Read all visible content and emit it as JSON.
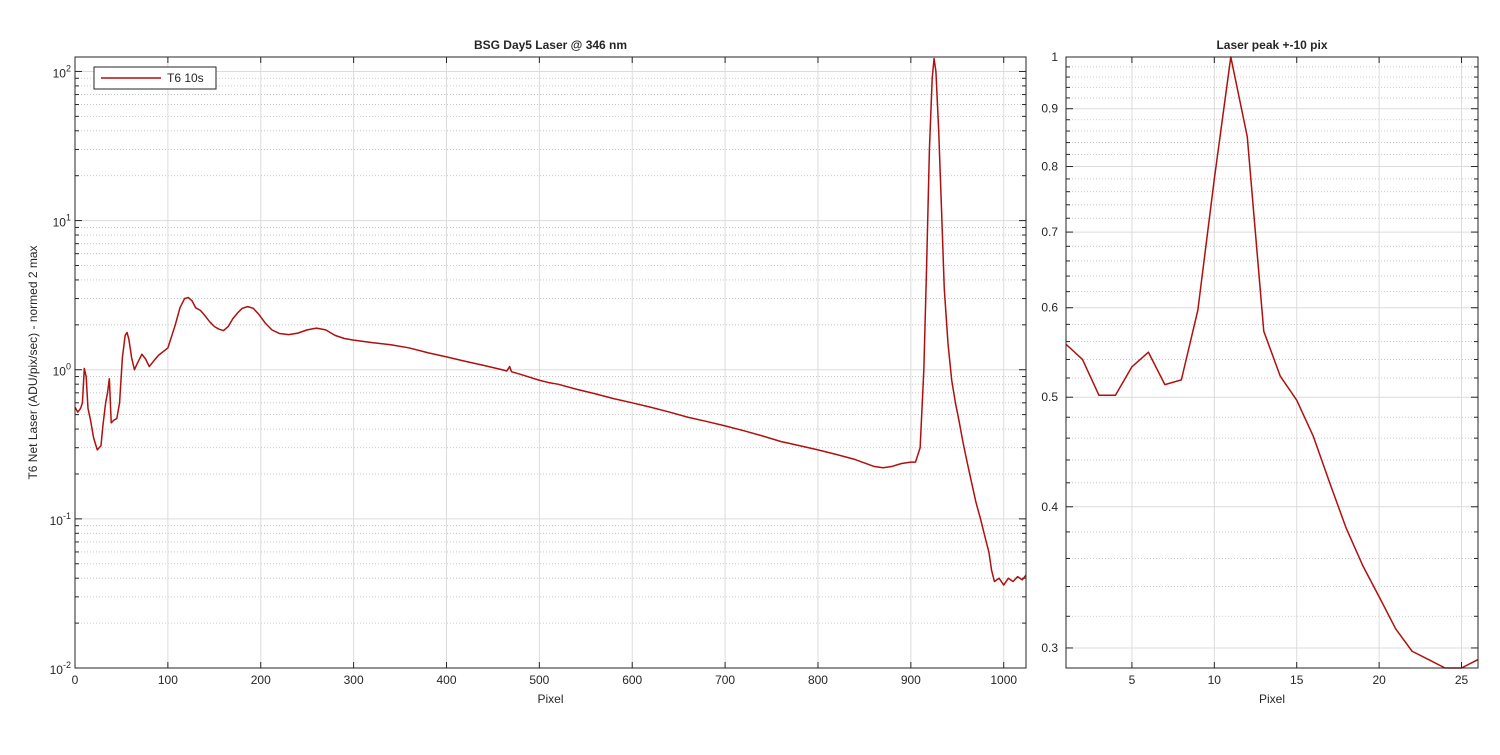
{
  "chart_data": [
    {
      "type": "line",
      "title": "BSG  Day5 Laser @ 346 nm",
      "xlabel": "Pixel",
      "ylabel": "T6 Net Laser (ADU/pix/sec) - normed 2 max",
      "xlim": [
        0,
        1024
      ],
      "ylim": [
        0.01,
        125
      ],
      "yscale": "log",
      "grid": "on",
      "minor_grid": "on",
      "legend_position": "top-left",
      "xticks": [
        "0",
        "100",
        "200",
        "300",
        "400",
        "500",
        "600",
        "700",
        "800",
        "900",
        "1000"
      ],
      "xtick_values": [
        0,
        100,
        200,
        300,
        400,
        500,
        600,
        700,
        800,
        900,
        1000
      ],
      "yticks": [
        {
          "value": 0.01,
          "base": "10",
          "exp": "-2"
        },
        {
          "value": 0.1,
          "base": "10",
          "exp": "-1"
        },
        {
          "value": 1,
          "base": "10",
          "exp": "0"
        },
        {
          "value": 10,
          "base": "10",
          "exp": "1"
        },
        {
          "value": 100,
          "base": "10",
          "exp": "2"
        }
      ],
      "series": [
        {
          "name": "T6 10s",
          "color": "#b00f0f",
          "points": [
            [
              0,
              0.56
            ],
            [
              3,
              0.52
            ],
            [
              6,
              0.55
            ],
            [
              8,
              0.6
            ],
            [
              10,
              1.02
            ],
            [
              12,
              0.9
            ],
            [
              14,
              0.55
            ],
            [
              17,
              0.45
            ],
            [
              20,
              0.35
            ],
            [
              24,
              0.29
            ],
            [
              28,
              0.31
            ],
            [
              30,
              0.42
            ],
            [
              33,
              0.6
            ],
            [
              35,
              0.7
            ],
            [
              37,
              0.87
            ],
            [
              39,
              0.44
            ],
            [
              42,
              0.46
            ],
            [
              45,
              0.47
            ],
            [
              48,
              0.6
            ],
            [
              51,
              1.2
            ],
            [
              54,
              1.7
            ],
            [
              56,
              1.78
            ],
            [
              58,
              1.6
            ],
            [
              61,
              1.2
            ],
            [
              64,
              1.0
            ],
            [
              67,
              1.1
            ],
            [
              72,
              1.27
            ],
            [
              76,
              1.18
            ],
            [
              80,
              1.05
            ],
            [
              85,
              1.15
            ],
            [
              90,
              1.25
            ],
            [
              100,
              1.4
            ],
            [
              108,
              2.0
            ],
            [
              113,
              2.6
            ],
            [
              118,
              3.0
            ],
            [
              122,
              3.05
            ],
            [
              126,
              2.9
            ],
            [
              130,
              2.6
            ],
            [
              135,
              2.5
            ],
            [
              140,
              2.3
            ],
            [
              145,
              2.1
            ],
            [
              150,
              1.95
            ],
            [
              155,
              1.87
            ],
            [
              160,
              1.83
            ],
            [
              165,
              1.95
            ],
            [
              170,
              2.2
            ],
            [
              175,
              2.4
            ],
            [
              180,
              2.58
            ],
            [
              186,
              2.65
            ],
            [
              192,
              2.58
            ],
            [
              198,
              2.35
            ],
            [
              205,
              2.05
            ],
            [
              212,
              1.85
            ],
            [
              220,
              1.75
            ],
            [
              230,
              1.72
            ],
            [
              240,
              1.76
            ],
            [
              250,
              1.85
            ],
            [
              260,
              1.9
            ],
            [
              270,
              1.85
            ],
            [
              280,
              1.7
            ],
            [
              290,
              1.62
            ],
            [
              300,
              1.58
            ],
            [
              320,
              1.52
            ],
            [
              340,
              1.47
            ],
            [
              360,
              1.4
            ],
            [
              380,
              1.3
            ],
            [
              400,
              1.22
            ],
            [
              420,
              1.14
            ],
            [
              440,
              1.07
            ],
            [
              460,
              1.0
            ],
            [
              465,
              0.98
            ],
            [
              468,
              1.05
            ],
            [
              470,
              0.97
            ],
            [
              480,
              0.93
            ],
            [
              500,
              0.85
            ],
            [
              510,
              0.82
            ],
            [
              520,
              0.8
            ],
            [
              540,
              0.74
            ],
            [
              560,
              0.69
            ],
            [
              580,
              0.64
            ],
            [
              600,
              0.6
            ],
            [
              620,
              0.56
            ],
            [
              640,
              0.52
            ],
            [
              660,
              0.48
            ],
            [
              680,
              0.45
            ],
            [
              700,
              0.42
            ],
            [
              720,
              0.39
            ],
            [
              740,
              0.36
            ],
            [
              760,
              0.33
            ],
            [
              780,
              0.31
            ],
            [
              800,
              0.29
            ],
            [
              820,
              0.27
            ],
            [
              840,
              0.25
            ],
            [
              860,
              0.225
            ],
            [
              870,
              0.22
            ],
            [
              880,
              0.225
            ],
            [
              890,
              0.235
            ],
            [
              900,
              0.24
            ],
            [
              905,
              0.24
            ],
            [
              910,
              0.3
            ],
            [
              914,
              1.0
            ],
            [
              917,
              5.0
            ],
            [
              920,
              30
            ],
            [
              923,
              90
            ],
            [
              925,
              122
            ],
            [
              927,
              100
            ],
            [
              930,
              40
            ],
            [
              933,
              12
            ],
            [
              936,
              3.5
            ],
            [
              940,
              1.5
            ],
            [
              944,
              0.85
            ],
            [
              948,
              0.6
            ],
            [
              952,
              0.45
            ],
            [
              956,
              0.33
            ],
            [
              960,
              0.25
            ],
            [
              965,
              0.18
            ],
            [
              970,
              0.13
            ],
            [
              975,
              0.1
            ],
            [
              980,
              0.075
            ],
            [
              984,
              0.06
            ],
            [
              987,
              0.045
            ],
            [
              990,
              0.038
            ],
            [
              995,
              0.04
            ],
            [
              1000,
              0.036
            ],
            [
              1005,
              0.04
            ],
            [
              1010,
              0.038
            ],
            [
              1015,
              0.041
            ],
            [
              1020,
              0.039
            ],
            [
              1024,
              0.042
            ]
          ]
        }
      ]
    },
    {
      "type": "line",
      "title": "Laser peak +-10 pix",
      "xlabel": "Pixel",
      "ylabel": "",
      "xlim": [
        1,
        26
      ],
      "ylim": [
        0.288,
        1.0
      ],
      "yscale": "log",
      "grid": "on",
      "minor_grid": "on",
      "xticks": [
        "5",
        "10",
        "15",
        "20",
        "25"
      ],
      "xtick_values": [
        5,
        10,
        15,
        20,
        25
      ],
      "yticks": [
        "0.3",
        "0.4",
        "0.5",
        "0.6",
        "0.7",
        "0.8",
        "0.9",
        "1"
      ],
      "ytick_values": [
        0.3,
        0.4,
        0.5,
        0.6,
        0.7,
        0.8,
        0.9,
        1.0
      ],
      "series": [
        {
          "color": "#b00f0f",
          "x": [
            1,
            2,
            3,
            4,
            5,
            6,
            7,
            8,
            9,
            10,
            11,
            12,
            13,
            14,
            15,
            16,
            17,
            18,
            19,
            20,
            21,
            22,
            23,
            24,
            25,
            26
          ],
          "y": [
            0.557,
            0.54,
            0.502,
            0.502,
            0.532,
            0.548,
            0.513,
            0.518,
            0.597,
            0.78,
            1.0,
            0.85,
            0.572,
            0.522,
            0.497,
            0.462,
            0.42,
            0.383,
            0.355,
            0.333,
            0.312,
            0.298,
            0.293,
            0.286,
            0.288,
            0.293
          ]
        }
      ]
    }
  ]
}
